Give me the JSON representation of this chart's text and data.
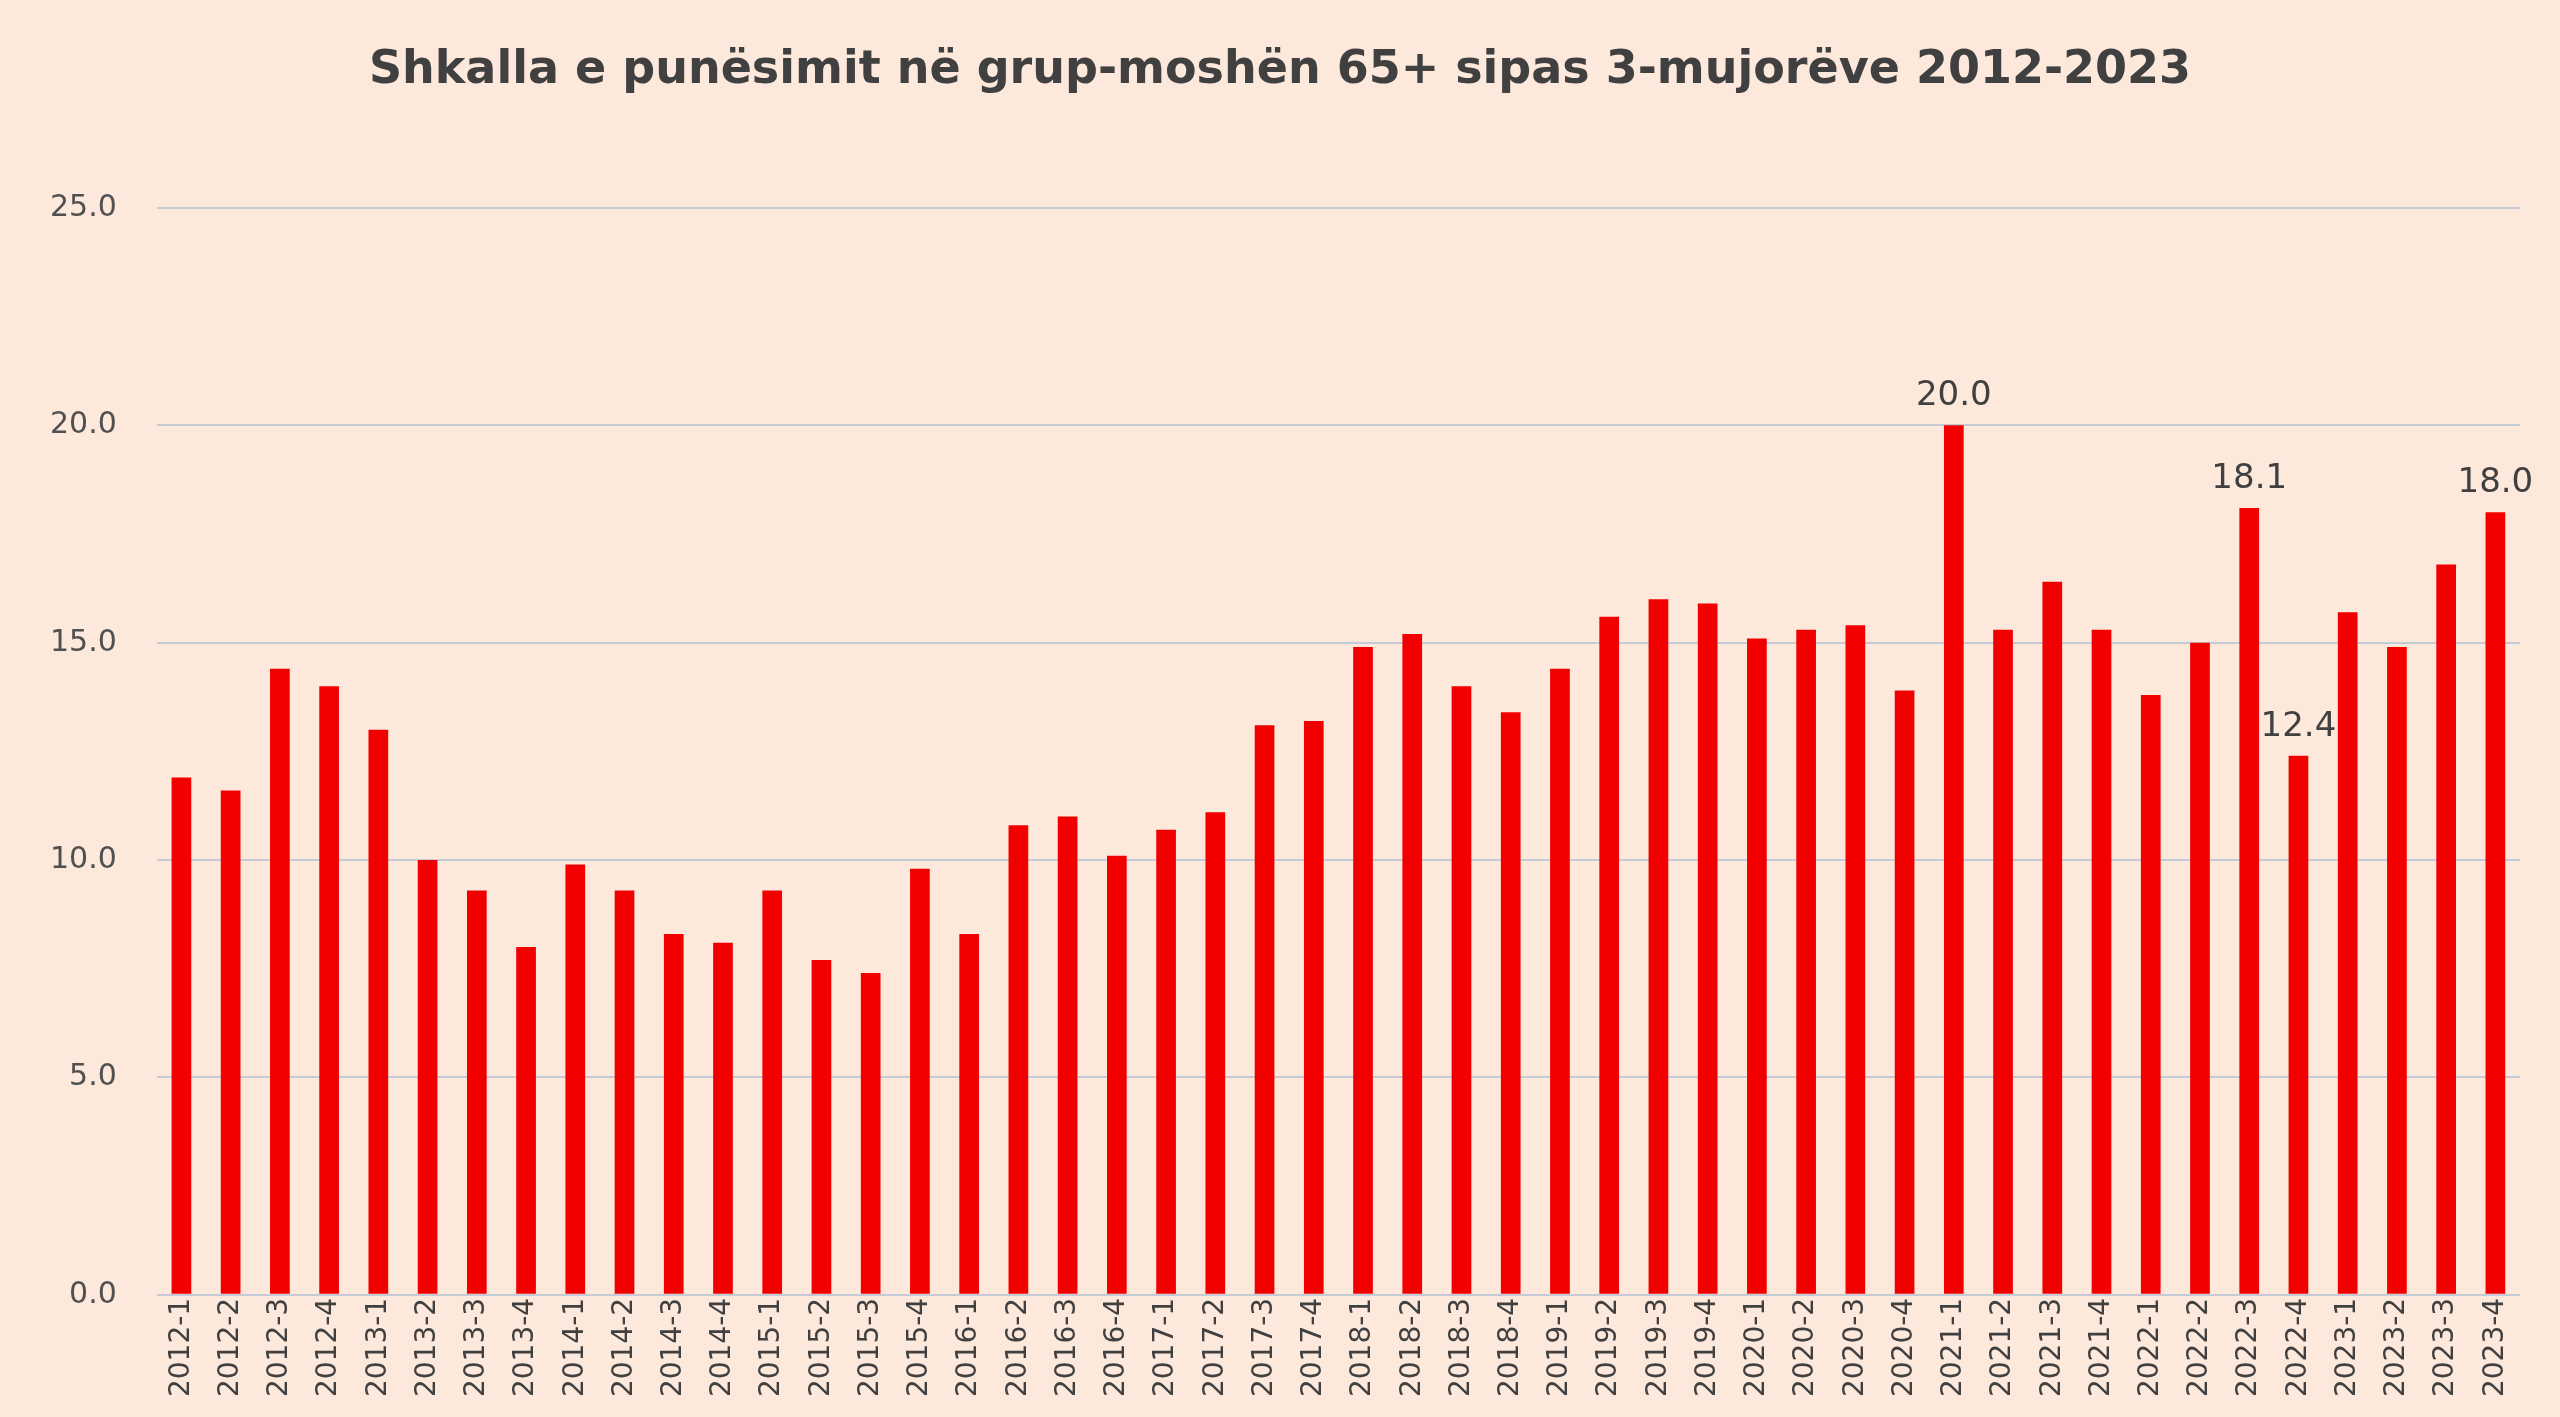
{
  "chart_data": {
    "type": "bar",
    "title": "Shkalla e punësimit në grup-moshën 65+ sipas 3-mujorëve 2012-2023",
    "categories": [
      "2012-1",
      "2012-2",
      "2012-3",
      "2012-4",
      "2013-1",
      "2013-2",
      "2013-3",
      "2013-4",
      "2014-1",
      "2014-2",
      "2014-3",
      "2014-4",
      "2015-1",
      "2015-2",
      "2015-3",
      "2015-4",
      "2016-1",
      "2016-2",
      "2016-3",
      "2016-4",
      "2017-1",
      "2017-2",
      "2017-3",
      "2017-4",
      "2018-1",
      "2018-2",
      "2018-3",
      "2018-4",
      "2019-1",
      "2019-2",
      "2019-3",
      "2019-4",
      "2020-1",
      "2020-2",
      "2020-3",
      "2020-4",
      "2021-1",
      "2021-2",
      "2021-3",
      "2021-4",
      "2022-1",
      "2022-2",
      "2022-3",
      "2022-4",
      "2023-1",
      "2023-2",
      "2023-3",
      "2023-4"
    ],
    "values": [
      11.9,
      11.6,
      14.4,
      14.0,
      13.0,
      10.0,
      9.3,
      8.0,
      9.9,
      9.3,
      8.3,
      8.1,
      9.3,
      7.7,
      7.4,
      9.8,
      8.3,
      10.8,
      11.0,
      10.1,
      10.7,
      11.1,
      13.1,
      13.2,
      14.9,
      15.2,
      14.0,
      13.4,
      14.4,
      15.6,
      16.0,
      15.9,
      15.1,
      15.3,
      15.4,
      13.9,
      20.0,
      15.3,
      16.4,
      15.3,
      13.8,
      15.0,
      18.1,
      12.4,
      15.7,
      14.9,
      16.8,
      18.0
    ],
    "value_labels": [
      null,
      null,
      null,
      null,
      null,
      null,
      null,
      null,
      null,
      null,
      null,
      null,
      null,
      null,
      null,
      null,
      null,
      null,
      null,
      null,
      null,
      null,
      null,
      null,
      null,
      null,
      null,
      null,
      null,
      null,
      null,
      null,
      null,
      null,
      null,
      null,
      "20.0",
      null,
      null,
      null,
      null,
      null,
      "18.1",
      "12.4",
      null,
      null,
      null,
      "18.0"
    ],
    "color": "#f20000",
    "ylim": [
      0,
      25
    ],
    "yticks": [
      {
        "value": 0,
        "label": "0.0"
      },
      {
        "value": 5,
        "label": "5.0"
      },
      {
        "value": 10,
        "label": "10.0"
      },
      {
        "value": 15,
        "label": "15.0"
      },
      {
        "value": 20,
        "label": "20.0"
      },
      {
        "value": 25,
        "label": "25.0"
      }
    ],
    "grid": "y"
  }
}
